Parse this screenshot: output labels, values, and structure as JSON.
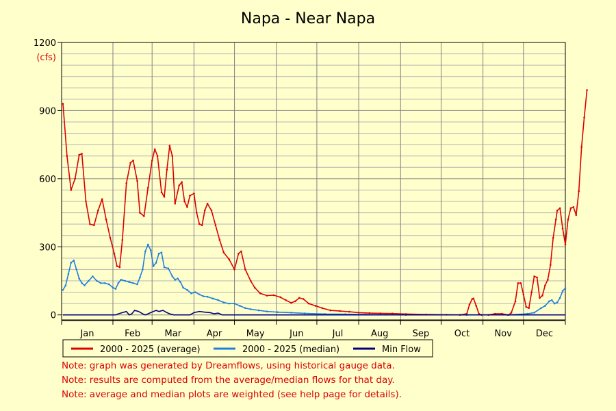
{
  "chart_data": {
    "type": "line",
    "title": "Napa - Near Napa",
    "ylabel": "(cfs)",
    "ylim": [
      0,
      1200
    ],
    "y_ticks": [
      0,
      300,
      600,
      900,
      1200
    ],
    "x_categories": [
      "Jan",
      "Feb",
      "Mar",
      "Apr",
      "May",
      "Jun",
      "Jul",
      "Aug",
      "Sep",
      "Oct",
      "Nov",
      "Dec"
    ],
    "x_range_days": [
      1,
      366
    ],
    "grid": true,
    "legend_position": "bottom-left",
    "series": [
      {
        "name": "2000 - 2025 (average)",
        "color": "#dd0000",
        "points": [
          [
            1,
            930
          ],
          [
            4,
            700
          ],
          [
            7,
            550
          ],
          [
            10,
            600
          ],
          [
            13,
            705
          ],
          [
            15,
            710
          ],
          [
            18,
            500
          ],
          [
            21,
            400
          ],
          [
            24,
            395
          ],
          [
            27,
            460
          ],
          [
            30,
            510
          ],
          [
            33,
            420
          ],
          [
            36,
            340
          ],
          [
            39,
            270
          ],
          [
            41,
            215
          ],
          [
            43,
            210
          ],
          [
            45,
            330
          ],
          [
            48,
            580
          ],
          [
            51,
            670
          ],
          [
            53,
            680
          ],
          [
            56,
            590
          ],
          [
            58,
            450
          ],
          [
            61,
            435
          ],
          [
            64,
            560
          ],
          [
            67,
            680
          ],
          [
            69,
            730
          ],
          [
            71,
            700
          ],
          [
            74,
            540
          ],
          [
            76,
            520
          ],
          [
            78,
            640
          ],
          [
            80,
            745
          ],
          [
            82,
            700
          ],
          [
            84,
            490
          ],
          [
            87,
            570
          ],
          [
            89,
            585
          ],
          [
            91,
            500
          ],
          [
            93,
            475
          ],
          [
            95,
            525
          ],
          [
            98,
            535
          ],
          [
            100,
            450
          ],
          [
            102,
            400
          ],
          [
            104,
            395
          ],
          [
            106,
            460
          ],
          [
            108,
            490
          ],
          [
            111,
            460
          ],
          [
            114,
            395
          ],
          [
            117,
            330
          ],
          [
            120,
            275
          ],
          [
            124,
            245
          ],
          [
            128,
            200
          ],
          [
            131,
            270
          ],
          [
            133,
            280
          ],
          [
            136,
            200
          ],
          [
            140,
            150
          ],
          [
            143,
            120
          ],
          [
            147,
            95
          ],
          [
            152,
            85
          ],
          [
            157,
            87
          ],
          [
            162,
            78
          ],
          [
            166,
            65
          ],
          [
            170,
            53
          ],
          [
            173,
            60
          ],
          [
            176,
            75
          ],
          [
            179,
            70
          ],
          [
            183,
            50
          ],
          [
            188,
            40
          ],
          [
            193,
            30
          ],
          [
            199,
            20
          ],
          [
            206,
            17
          ],
          [
            213,
            14
          ],
          [
            220,
            10
          ],
          [
            228,
            8
          ],
          [
            236,
            7
          ],
          [
            245,
            6
          ],
          [
            255,
            4
          ],
          [
            270,
            2
          ],
          [
            285,
            1
          ],
          [
            295,
            0
          ],
          [
            300,
            5
          ],
          [
            302,
            45
          ],
          [
            304,
            70
          ],
          [
            305,
            72
          ],
          [
            307,
            40
          ],
          [
            309,
            5
          ],
          [
            311,
            0
          ],
          [
            316,
            0
          ],
          [
            321,
            5
          ],
          [
            326,
            5
          ],
          [
            331,
            0
          ],
          [
            333,
            10
          ],
          [
            336,
            60
          ],
          [
            338,
            140
          ],
          [
            340,
            140
          ],
          [
            342,
            90
          ],
          [
            344,
            35
          ],
          [
            346,
            30
          ],
          [
            348,
            100
          ],
          [
            350,
            170
          ],
          [
            352,
            165
          ],
          [
            354,
            75
          ],
          [
            356,
            85
          ],
          [
            358,
            130
          ],
          [
            360,
            155
          ],
          [
            362,
            220
          ],
          [
            364,
            340
          ],
          [
            366,
            420
          ],
          [
            367,
            460
          ],
          [
            369,
            470
          ],
          [
            371,
            380
          ],
          [
            373,
            310
          ],
          [
            375,
            420
          ],
          [
            377,
            470
          ],
          [
            379,
            475
          ],
          [
            381,
            440
          ],
          [
            383,
            545
          ],
          [
            385,
            740
          ],
          [
            387,
            870
          ],
          [
            389,
            990
          ]
        ]
      },
      {
        "name": "2000 - 2025 (median)",
        "color": "#1f7fdd",
        "points": [
          [
            1,
            110
          ],
          [
            3,
            130
          ],
          [
            5,
            180
          ],
          [
            7,
            230
          ],
          [
            9,
            240
          ],
          [
            11,
            200
          ],
          [
            13,
            160
          ],
          [
            15,
            140
          ],
          [
            17,
            130
          ],
          [
            20,
            150
          ],
          [
            23,
            170
          ],
          [
            26,
            150
          ],
          [
            29,
            140
          ],
          [
            32,
            140
          ],
          [
            35,
            135
          ],
          [
            38,
            120
          ],
          [
            40,
            115
          ],
          [
            42,
            140
          ],
          [
            44,
            155
          ],
          [
            47,
            150
          ],
          [
            50,
            145
          ],
          [
            53,
            140
          ],
          [
            56,
            135
          ],
          [
            58,
            165
          ],
          [
            60,
            200
          ],
          [
            62,
            280
          ],
          [
            64,
            310
          ],
          [
            66,
            285
          ],
          [
            68,
            215
          ],
          [
            70,
            230
          ],
          [
            72,
            270
          ],
          [
            74,
            275
          ],
          [
            76,
            210
          ],
          [
            79,
            205
          ],
          [
            82,
            170
          ],
          [
            84,
            155
          ],
          [
            86,
            160
          ],
          [
            88,
            145
          ],
          [
            90,
            120
          ],
          [
            93,
            110
          ],
          [
            96,
            95
          ],
          [
            99,
            100
          ],
          [
            102,
            90
          ],
          [
            105,
            82
          ],
          [
            108,
            80
          ],
          [
            112,
            72
          ],
          [
            116,
            65
          ],
          [
            120,
            55
          ],
          [
            124,
            50
          ],
          [
            128,
            50
          ],
          [
            132,
            40
          ],
          [
            136,
            30
          ],
          [
            140,
            25
          ],
          [
            146,
            20
          ],
          [
            152,
            15
          ],
          [
            160,
            12
          ],
          [
            170,
            10
          ],
          [
            180,
            7
          ],
          [
            195,
            4
          ],
          [
            210,
            3
          ],
          [
            225,
            2
          ],
          [
            240,
            1
          ],
          [
            255,
            0
          ],
          [
            300,
            0
          ],
          [
            330,
            0
          ],
          [
            345,
            5
          ],
          [
            350,
            10
          ],
          [
            355,
            30
          ],
          [
            358,
            40
          ],
          [
            361,
            60
          ],
          [
            363,
            65
          ],
          [
            365,
            50
          ],
          [
            367,
            55
          ],
          [
            369,
            75
          ],
          [
            371,
            105
          ],
          [
            373,
            118
          ]
        ]
      },
      {
        "name": "Min Flow",
        "color": "#000080",
        "points": [
          [
            1,
            0
          ],
          [
            40,
            0
          ],
          [
            42,
            5
          ],
          [
            45,
            10
          ],
          [
            48,
            15
          ],
          [
            50,
            0
          ],
          [
            52,
            5
          ],
          [
            54,
            20
          ],
          [
            57,
            15
          ],
          [
            60,
            5
          ],
          [
            62,
            0
          ],
          [
            64,
            5
          ],
          [
            66,
            10
          ],
          [
            68,
            15
          ],
          [
            70,
            20
          ],
          [
            72,
            15
          ],
          [
            75,
            20
          ],
          [
            78,
            10
          ],
          [
            80,
            5
          ],
          [
            83,
            0
          ],
          [
            95,
            0
          ],
          [
            98,
            10
          ],
          [
            102,
            15
          ],
          [
            106,
            12
          ],
          [
            110,
            10
          ],
          [
            113,
            5
          ],
          [
            116,
            8
          ],
          [
            119,
            0
          ],
          [
            130,
            0
          ],
          [
            373,
            0
          ]
        ]
      }
    ]
  },
  "notes": [
    "Note: graph was generated by Dreamflows, using historical gauge data.",
    "Note: results are computed from the average/median flows for that day.",
    "Note: average and median plots are weighted (see help page for details)."
  ],
  "colors": {
    "background": "#ffffcc",
    "grid": "#808080",
    "minor_grid": "#b4b4b4",
    "note_text": "#dd0000",
    "unit_text": "#dd0000"
  }
}
